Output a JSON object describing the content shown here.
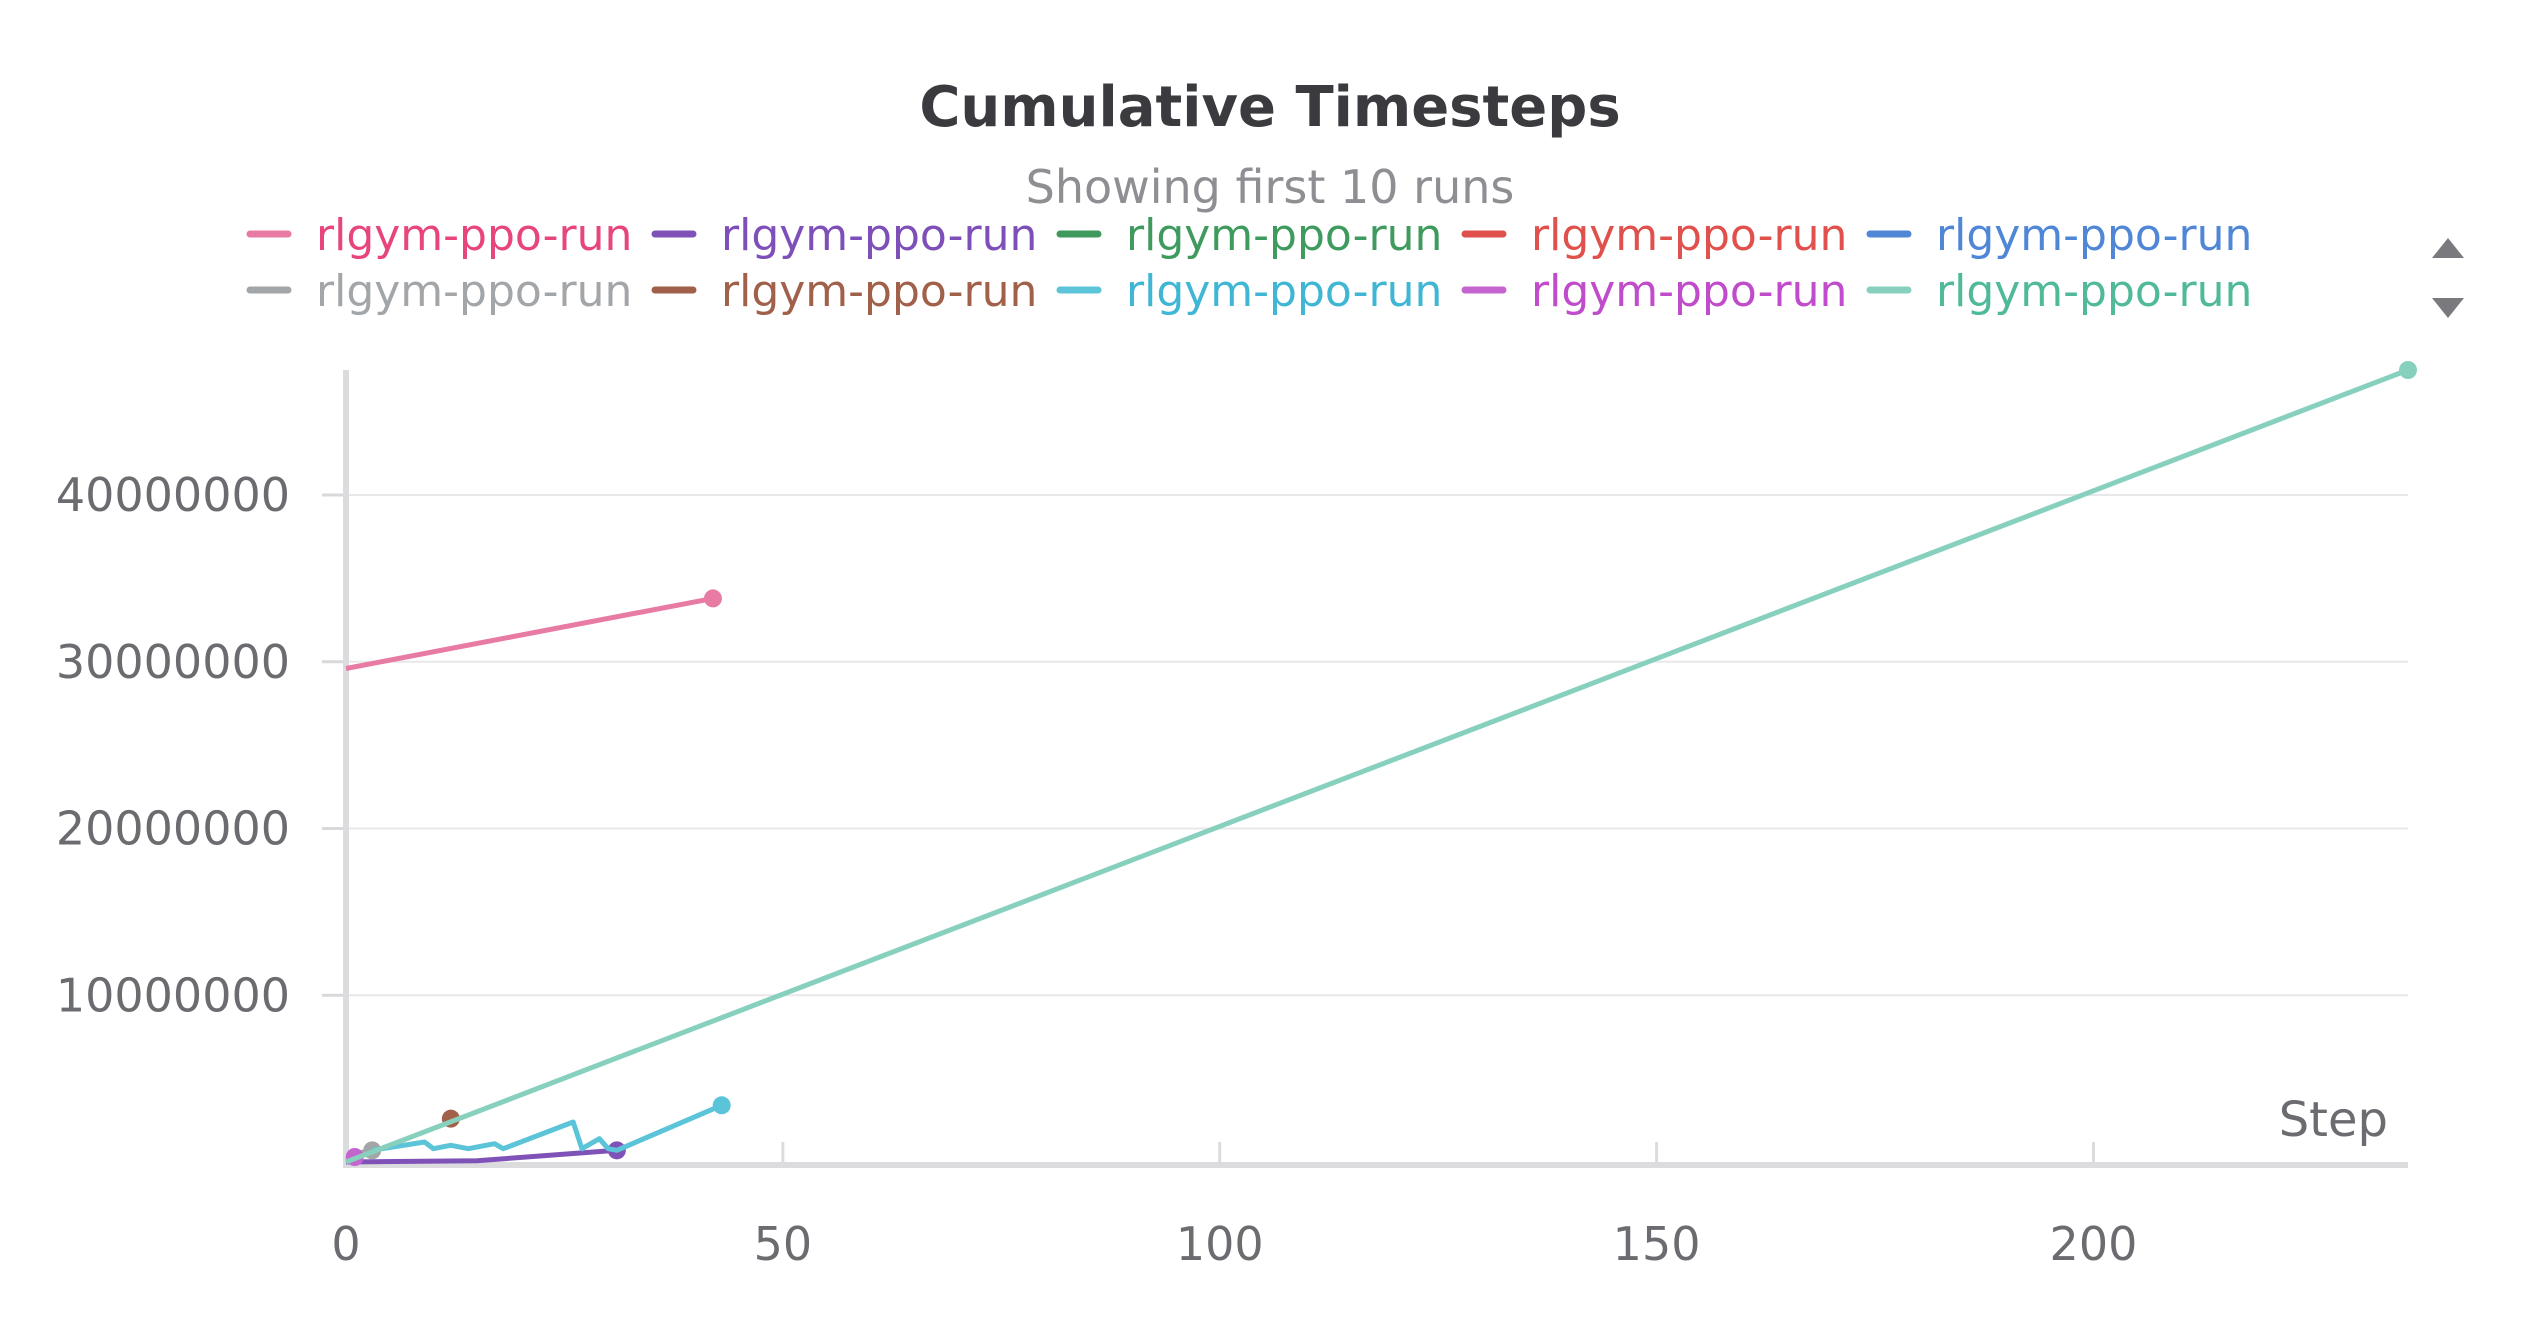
{
  "chart_data": {
    "type": "line",
    "title": "Cumulative Timesteps",
    "subtitle": "Showing first 10 runs",
    "xlabel": "Step",
    "ylabel": "",
    "xlim": [
      0,
      236
    ],
    "ylim": [
      0,
      47500000
    ],
    "xticks": [
      0,
      50,
      100,
      150,
      200
    ],
    "yticks": [
      10000000,
      20000000,
      30000000,
      40000000
    ],
    "grid": "horizontal",
    "legend_position": "top",
    "series": [
      {
        "name": "rlgym-ppo-run",
        "color": "#e87ba4",
        "legend_color": "#e8457c",
        "points": [
          [
            0,
            29600000
          ],
          [
            42,
            33800000
          ]
        ]
      },
      {
        "name": "rlgym-ppo-run",
        "color": "#7f52b8",
        "legend_color": "#7e4fb9",
        "points": [
          [
            0,
            0
          ],
          [
            15,
            80000
          ],
          [
            31,
            700000
          ]
        ]
      },
      {
        "name": "rlgym-ppo-run",
        "color": "#3e9a5c",
        "legend_color": "#3f9a5e",
        "points": []
      },
      {
        "name": "rlgym-ppo-run",
        "color": "#e0504c",
        "legend_color": "#e0504c",
        "points": []
      },
      {
        "name": "rlgym-ppo-run",
        "color": "#4f86d6",
        "legend_color": "#4f86d6",
        "points": []
      },
      {
        "name": "rlgym-ppo-run",
        "color": "#a3a6a9",
        "legend_color": "#a3a6a9",
        "points": [
          [
            1,
            500000
          ],
          [
            3,
            700000
          ]
        ]
      },
      {
        "name": "rlgym-ppo-run",
        "color": "#a0604a",
        "legend_color": "#a0604a",
        "points": [
          [
            12,
            2600000
          ]
        ]
      },
      {
        "name": "rlgym-ppo-run",
        "color": "#5bc4d8",
        "legend_color": "#3fb6d3",
        "points": [
          [
            3,
            700000
          ],
          [
            9,
            1200000
          ],
          [
            10,
            800000
          ],
          [
            12,
            1000000
          ],
          [
            14,
            800000
          ],
          [
            17,
            1100000
          ],
          [
            18,
            800000
          ],
          [
            26,
            2400000
          ],
          [
            27,
            800000
          ],
          [
            29,
            1400000
          ],
          [
            30,
            800000
          ],
          [
            31,
            700000
          ],
          [
            43,
            3400000
          ]
        ]
      },
      {
        "name": "rlgym-ppo-run",
        "color": "#c465cf",
        "legend_color": "#c04ccb",
        "points": [
          [
            1,
            300000
          ]
        ]
      },
      {
        "name": "rlgym-ppo-run",
        "color": "#86d0bd",
        "legend_color": "#4fb99a",
        "points": [
          [
            0,
            0
          ],
          [
            236,
            47500000
          ]
        ]
      }
    ]
  },
  "ui": {
    "legend_scroll_up": "scroll-up",
    "legend_scroll_down": "scroll-down"
  }
}
